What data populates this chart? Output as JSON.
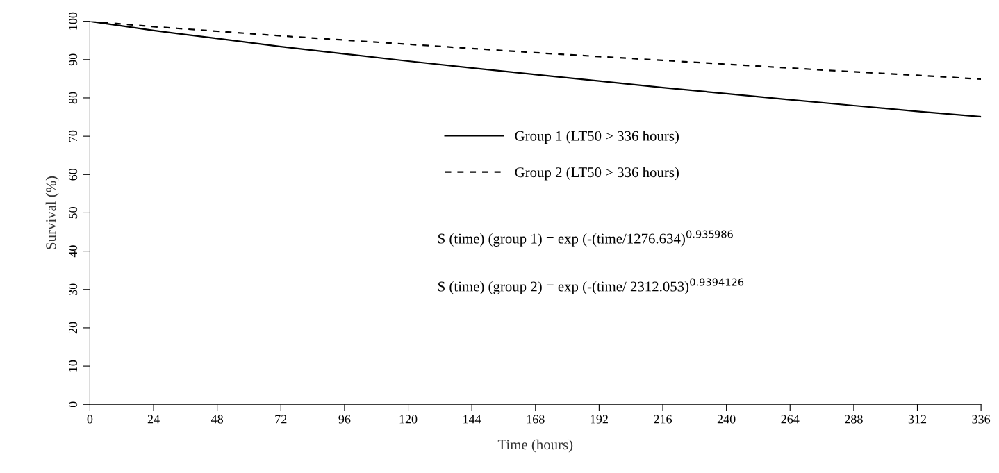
{
  "chart_data": {
    "type": "line",
    "xlabel": "Time (hours)",
    "ylabel": "Survival (%)",
    "x": [
      0,
      24,
      48,
      72,
      96,
      120,
      144,
      168,
      192,
      216,
      240,
      264,
      288,
      312,
      336
    ],
    "series": [
      {
        "name": "Group 1 (LT50 > 336 hours)",
        "color": "#000000",
        "line_style": "solid",
        "values": [
          100,
          97.6,
          95.5,
          93.4,
          91.5,
          89.6,
          87.8,
          86.1,
          84.4,
          82.7,
          81.1,
          79.5,
          78.0,
          76.5,
          75.1
        ]
      },
      {
        "name": "Group 2 (LT50 > 336 hours)",
        "color": "#000000",
        "line_style": "dashed",
        "values": [
          100,
          98.6,
          97.4,
          96.2,
          95.1,
          94.0,
          92.9,
          91.8,
          90.8,
          89.8,
          88.8,
          87.8,
          86.8,
          85.9,
          84.9
        ]
      }
    ],
    "annotations": [
      "S (time) (group 1) = exp (-(time/1276.634)$^{0.935986}$",
      "S (time) (group 2) = exp (-(time/ 2312.053)$^{0.9394126}$"
    ],
    "xlim": [
      0,
      336
    ],
    "xticks": [
      0,
      24,
      48,
      72,
      96,
      120,
      144,
      168,
      192,
      216,
      240,
      264,
      288,
      312,
      336
    ],
    "ylim": [
      0,
      100
    ],
    "yticks": [
      0,
      10,
      20,
      30,
      40,
      50,
      60,
      70,
      80,
      90,
      100
    ],
    "grid": false,
    "legend": "center",
    "marker": "none"
  }
}
